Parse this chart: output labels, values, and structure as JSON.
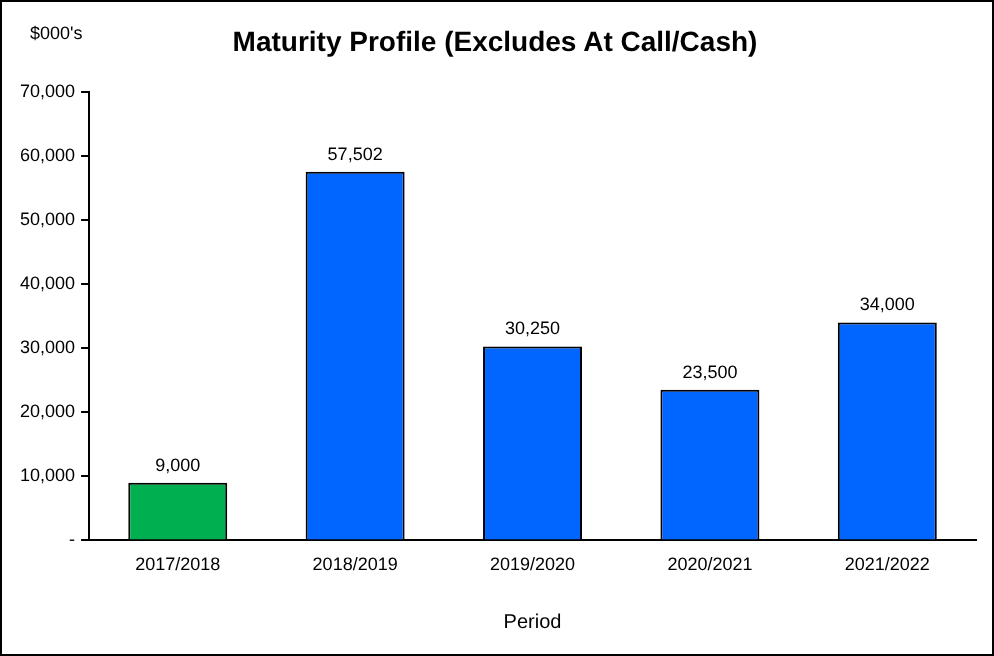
{
  "chart_data": {
    "type": "bar",
    "title": "Maturity Profile (Excludes At Call/Cash)",
    "ylabel": "$000's",
    "xlabel": "Period",
    "categories": [
      "2017/2018",
      "2018/2019",
      "2019/2020",
      "2020/2021",
      "2021/2022"
    ],
    "values": [
      9000,
      57502,
      30250,
      23500,
      34000
    ],
    "colors": [
      "#00b050",
      "#0066ff",
      "#0066ff",
      "#0066ff",
      "#0066ff"
    ],
    "value_labels": [
      "9,000",
      "57,502",
      "30,250",
      "23,500",
      "34,000"
    ],
    "ylim": [
      0,
      70000
    ],
    "yticks": [
      {
        "value": 0,
        "label": "-"
      },
      {
        "value": 10000,
        "label": "10,000"
      },
      {
        "value": 20000,
        "label": "20,000"
      },
      {
        "value": 30000,
        "label": "30,000"
      },
      {
        "value": 40000,
        "label": "40,000"
      },
      {
        "value": 50000,
        "label": "50,000"
      },
      {
        "value": 60000,
        "label": "60,000"
      },
      {
        "value": 70000,
        "label": "70,000"
      }
    ],
    "grid": false,
    "legend": false
  }
}
